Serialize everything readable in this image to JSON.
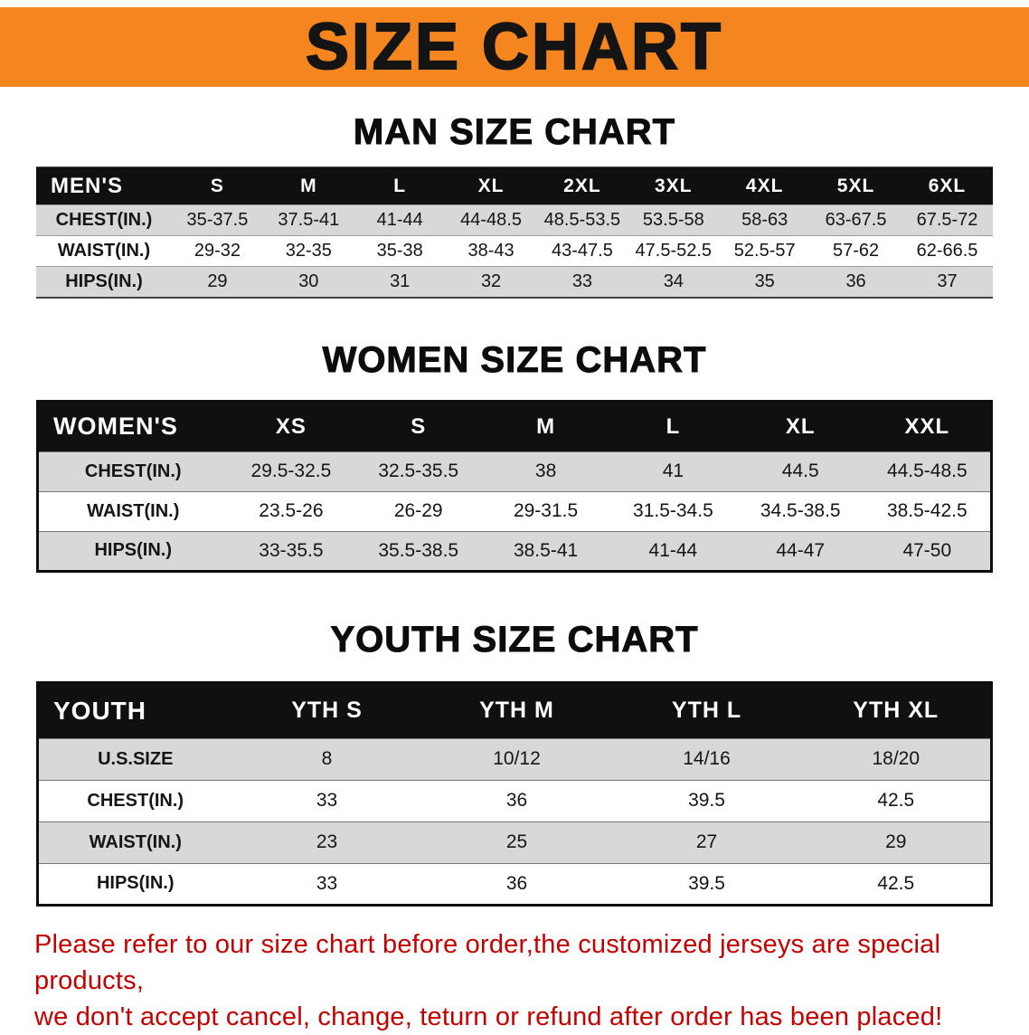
{
  "banner": {
    "title": "SIZE CHART"
  },
  "sections": [
    {
      "title": "MAN SIZE CHART",
      "header": [
        "MEN'S",
        "S",
        "M",
        "L",
        "XL",
        "2XL",
        "3XL",
        "4XL",
        "5XL",
        "6XL"
      ],
      "rows": [
        [
          "CHEST(IN.)",
          "35-37.5",
          "37.5-41",
          "41-44",
          "44-48.5",
          "48.5-53.5",
          "53.5-58",
          "58-63",
          "63-67.5",
          "67.5-72"
        ],
        [
          "WAIST(IN.)",
          "29-32",
          "32-35",
          "35-38",
          "38-43",
          "43-47.5",
          "47.5-52.5",
          "52.5-57",
          "57-62",
          "62-66.5"
        ],
        [
          "HIPS(IN.)",
          "29",
          "30",
          "31",
          "32",
          "33",
          "34",
          "35",
          "36",
          "37"
        ]
      ]
    },
    {
      "title": "WOMEN SIZE CHART",
      "header": [
        "WOMEN'S",
        "XS",
        "S",
        "M",
        "L",
        "XL",
        "XXL"
      ],
      "rows": [
        [
          "CHEST(IN.)",
          "29.5-32.5",
          "32.5-35.5",
          "38",
          "41",
          "44.5",
          "44.5-48.5"
        ],
        [
          "WAIST(IN.)",
          "23.5-26",
          "26-29",
          "29-31.5",
          "31.5-34.5",
          "34.5-38.5",
          "38.5-42.5"
        ],
        [
          "HIPS(IN.)",
          "33-35.5",
          "35.5-38.5",
          "38.5-41",
          "41-44",
          "44-47",
          "47-50"
        ]
      ]
    },
    {
      "title": "YOUTH SIZE CHART",
      "header": [
        "YOUTH",
        "YTH S",
        "YTH M",
        "YTH L",
        "YTH XL"
      ],
      "rows": [
        [
          "U.S.SIZE",
          "8",
          "10/12",
          "14/16",
          "18/20"
        ],
        [
          "CHEST(IN.)",
          "33",
          "36",
          "39.5",
          "42.5"
        ],
        [
          "WAIST(IN.)",
          "23",
          "25",
          "27",
          "29"
        ],
        [
          "HIPS(IN.)",
          "33",
          "36",
          "39.5",
          "42.5"
        ]
      ]
    }
  ],
  "notice": {
    "line1": "Please refer to our size chart before order,the customized jerseys are special products,",
    "line2": "we don't accept cancel, change, teturn or refund after order has been placed!"
  },
  "colors": {
    "banner_bg": "#F5861F",
    "header_bg": "#101010",
    "stripe_row": "#D8D8D8",
    "notice_text": "#C40000"
  }
}
